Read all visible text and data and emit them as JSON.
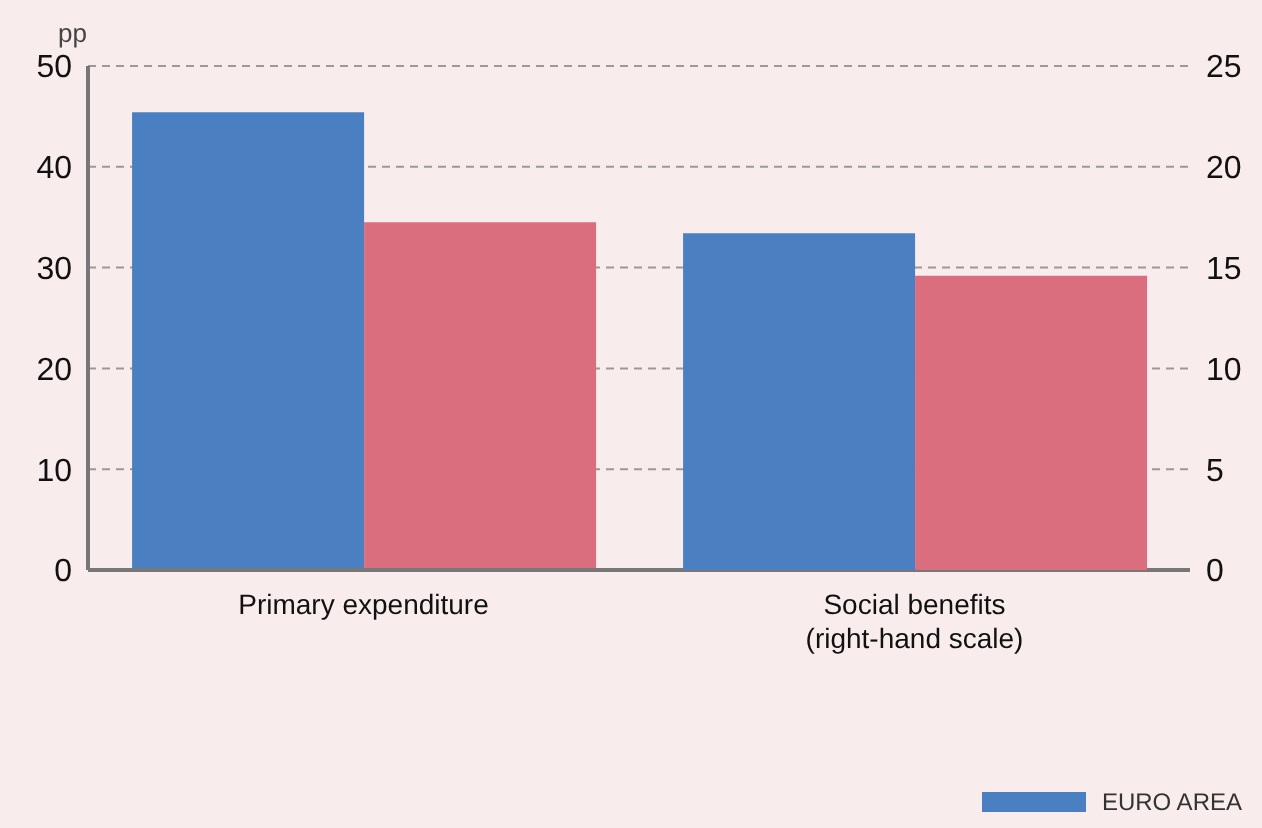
{
  "chart_data": {
    "type": "bar",
    "ylabel": "pp",
    "categories": [
      "Primary expenditure",
      "Social benefits\n(right-hand scale)"
    ],
    "series": [
      {
        "name": "EURO AREA",
        "color": "#4a7fc1",
        "values": [
          45.4,
          null
        ]
      },
      {
        "color": "#db6e7e",
        "values": [
          34.5,
          null
        ]
      },
      {
        "color": "#4a7fc1",
        "values": [
          null,
          16.7
        ],
        "axis": "y2"
      },
      {
        "color": "#db6e7e",
        "values": [
          null,
          14.6
        ],
        "axis": "y2"
      }
    ],
    "ylim": [
      0,
      50
    ],
    "yticks": [
      0,
      10,
      20,
      30,
      40,
      50
    ],
    "y2lim": [
      0,
      25
    ],
    "y2ticks": [
      0,
      5,
      10,
      15,
      20,
      25
    ],
    "grid": "y",
    "legend": "bottom right"
  }
}
